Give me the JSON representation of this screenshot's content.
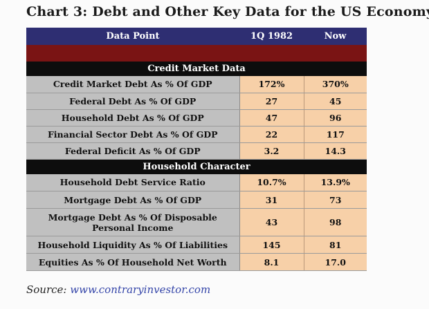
{
  "title": "Chart 3:  Debt and Other Key Data for the US Economy",
  "chart_data": {
    "type": "table",
    "title": "Chart 3:  Debt and Other Key Data for the US Economy",
    "columns": [
      "Data Point",
      "1Q 1982",
      "Now"
    ],
    "sections": [
      {
        "name": "Credit Market Data",
        "rows": [
          {
            "label": "Credit Market Debt As % Of GDP",
            "v1982": "172%",
            "now": "370%"
          },
          {
            "label": "Federal Debt As % Of GDP",
            "v1982": "27",
            "now": "45"
          },
          {
            "label": "Household Debt As % Of GDP",
            "v1982": "47",
            "now": "96"
          },
          {
            "label": "Financial Sector Debt As % Of GDP",
            "v1982": "22",
            "now": "117"
          },
          {
            "label": "Federal Deficit As % Of GDP",
            "v1982": "3.2",
            "now": "14.3"
          }
        ]
      },
      {
        "name": "Household Character",
        "rows": [
          {
            "label": "Household Debt Service Ratio",
            "v1982": "10.7%",
            "now": "13.9%"
          },
          {
            "label": "Mortgage Debt As % Of GDP",
            "v1982": "31",
            "now": "73"
          },
          {
            "label": "Mortgage Debt As % Of Disposable Personal Income",
            "v1982": "43",
            "now": "98"
          },
          {
            "label": "Household Liquidity As % Of Liabilities",
            "v1982": "145",
            "now": "81"
          },
          {
            "label": "Equities As % Of Household Net Worth",
            "v1982": "8.1",
            "now": "17.0"
          }
        ]
      }
    ]
  },
  "source": {
    "label": "Source:",
    "url": "www.contraryinvestor.com"
  }
}
